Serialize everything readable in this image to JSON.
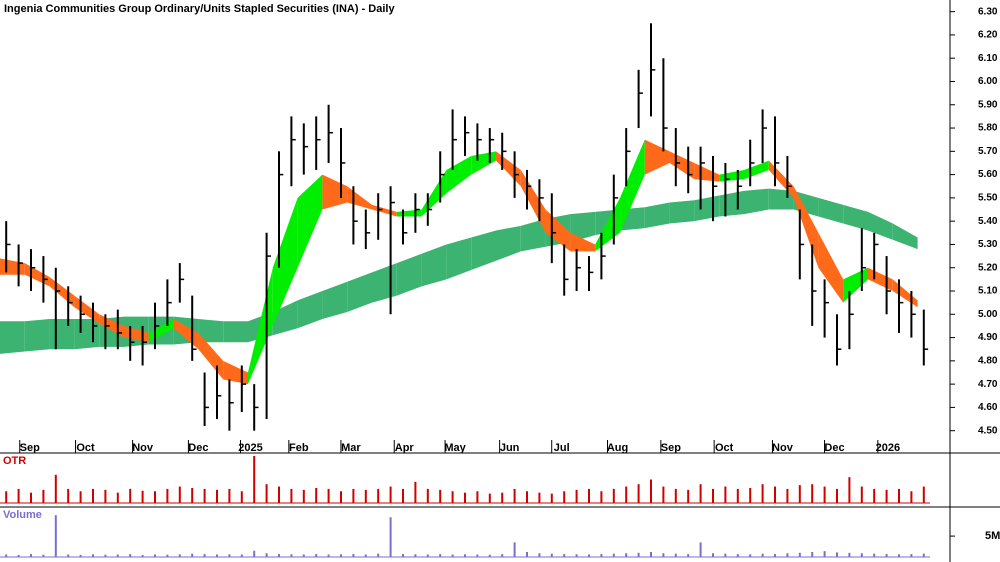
{
  "chart_data": {
    "type": "ohlc",
    "title": "Ingenia Communities Group Ordinary/Units Stapled Securities (INA) - Daily",
    "xlim": [
      0,
      75
    ],
    "xticks": [
      {
        "value": 2.4,
        "label": "Sep"
      },
      {
        "value": 6.9,
        "label": "Oct"
      },
      {
        "value": 11.5,
        "label": "Nov"
      },
      {
        "value": 16.0,
        "label": "Dec"
      },
      {
        "value": 20.2,
        "label": "2025"
      },
      {
        "value": 24.1,
        "label": "Feb"
      },
      {
        "value": 28.3,
        "label": "Mar"
      },
      {
        "value": 32.6,
        "label": "Apr"
      },
      {
        "value": 36.7,
        "label": "May"
      },
      {
        "value": 41.1,
        "label": "Jun"
      },
      {
        "value": 45.3,
        "label": "Jul"
      },
      {
        "value": 49.8,
        "label": "Aug"
      },
      {
        "value": 54.1,
        "label": "Sep"
      },
      {
        "value": 58.4,
        "label": "Oct"
      },
      {
        "value": 63.1,
        "label": "Nov"
      },
      {
        "value": 67.3,
        "label": "Dec"
      },
      {
        "value": 71.6,
        "label": "2026"
      }
    ],
    "ylim": [
      4.46,
      6.35
    ],
    "yticks": [
      {
        "value": 4.5,
        "label": "4.50"
      },
      {
        "value": 4.6,
        "label": "4.60"
      },
      {
        "value": 4.7,
        "label": "4.70"
      },
      {
        "value": 4.8,
        "label": "4.80"
      },
      {
        "value": 4.9,
        "label": "4.90"
      },
      {
        "value": 5.0,
        "label": "5.00"
      },
      {
        "value": 5.1,
        "label": "5.10"
      },
      {
        "value": 5.2,
        "label": "5.20"
      },
      {
        "value": 5.3,
        "label": "5.30"
      },
      {
        "value": 5.4,
        "label": "5.40"
      },
      {
        "value": 5.5,
        "label": "5.50"
      },
      {
        "value": 5.6,
        "label": "5.60"
      },
      {
        "value": 5.7,
        "label": "5.70"
      },
      {
        "value": 5.8,
        "label": "5.80"
      },
      {
        "value": 5.9,
        "label": "5.90"
      },
      {
        "value": 6.0,
        "label": "6.00"
      },
      {
        "value": 6.1,
        "label": "6.10"
      },
      {
        "value": 6.2,
        "label": "6.20"
      },
      {
        "value": 6.3,
        "label": "6.30"
      }
    ],
    "bar_color": "#000000",
    "high": [
      5.4,
      5.3,
      5.28,
      5.25,
      5.2,
      5.12,
      5.08,
      5.05,
      5.0,
      5.02,
      4.95,
      4.95,
      5.05,
      5.15,
      5.22,
      5.08,
      4.75,
      4.78,
      4.72,
      4.78,
      4.7,
      5.35,
      5.7,
      5.85,
      5.82,
      5.85,
      5.9,
      5.8,
      5.55,
      5.45,
      5.52,
      5.55,
      5.45,
      5.52,
      5.52,
      5.7,
      5.88,
      5.85,
      5.82,
      5.8,
      5.78,
      5.7,
      5.62,
      5.58,
      5.52,
      5.3,
      5.28,
      5.25,
      5.35,
      5.6,
      5.8,
      6.05,
      6.25,
      6.1,
      5.8,
      5.72,
      5.72,
      5.68,
      5.65,
      5.62,
      5.75,
      5.88,
      5.85,
      5.68,
      5.45,
      5.3,
      5.15,
      5.0,
      5.1,
      5.37,
      5.35,
      5.25,
      5.15,
      5.1,
      5.02
    ],
    "low": [
      5.18,
      5.12,
      5.1,
      5.05,
      4.85,
      4.95,
      4.92,
      4.88,
      4.85,
      4.85,
      4.8,
      4.78,
      4.85,
      4.95,
      5.05,
      4.8,
      4.52,
      4.55,
      4.5,
      4.58,
      4.5,
      4.55,
      5.2,
      5.55,
      5.6,
      5.62,
      5.65,
      5.5,
      5.3,
      5.28,
      5.32,
      5.0,
      5.3,
      5.35,
      5.38,
      5.48,
      5.62,
      5.68,
      5.66,
      5.65,
      5.62,
      5.5,
      5.45,
      5.4,
      5.22,
      5.08,
      5.1,
      5.1,
      5.15,
      5.3,
      5.55,
      5.8,
      5.85,
      5.7,
      5.55,
      5.52,
      5.45,
      5.4,
      5.42,
      5.45,
      5.55,
      5.65,
      5.55,
      5.5,
      5.15,
      4.95,
      4.9,
      4.78,
      4.85,
      5.1,
      5.15,
      5.0,
      4.92,
      4.9,
      4.78
    ],
    "close": [
      5.3,
      5.22,
      5.2,
      5.15,
      5.1,
      5.05,
      5.0,
      4.95,
      4.95,
      4.92,
      4.88,
      4.88,
      4.95,
      5.05,
      5.15,
      4.85,
      4.6,
      4.65,
      4.62,
      4.7,
      4.6,
      5.25,
      5.6,
      5.75,
      5.72,
      5.75,
      5.78,
      5.65,
      5.4,
      5.35,
      5.45,
      5.48,
      5.35,
      5.45,
      5.45,
      5.6,
      5.75,
      5.78,
      5.75,
      5.75,
      5.7,
      5.6,
      5.55,
      5.5,
      5.35,
      5.15,
      5.2,
      5.18,
      5.25,
      5.5,
      5.7,
      5.95,
      6.05,
      5.8,
      5.65,
      5.6,
      5.65,
      5.55,
      5.58,
      5.55,
      5.65,
      5.8,
      5.65,
      5.55,
      5.3,
      5.1,
      5.05,
      4.85,
      5.0,
      5.2,
      5.3,
      5.1,
      5.05,
      5.0,
      4.85
    ],
    "band_x": [
      0,
      2,
      4,
      6,
      8,
      10,
      12,
      14,
      16,
      18,
      20,
      22,
      24,
      26,
      28,
      30,
      32,
      34,
      36,
      38,
      40,
      42,
      44,
      46,
      48,
      50,
      52,
      54,
      56,
      58,
      60,
      62,
      64,
      66,
      68,
      70,
      72,
      74
    ],
    "short_band": {
      "rising_color": "#00ee00",
      "falling_color": "#ff6a1a",
      "upper": [
        5.24,
        5.22,
        5.16,
        5.08,
        5.0,
        4.95,
        4.92,
        4.98,
        4.92,
        4.8,
        4.75,
        5.2,
        5.5,
        5.6,
        5.55,
        5.47,
        5.44,
        5.45,
        5.62,
        5.68,
        5.7,
        5.62,
        5.45,
        5.35,
        5.3,
        5.5,
        5.75,
        5.7,
        5.65,
        5.6,
        5.62,
        5.66,
        5.55,
        5.35,
        5.15,
        5.2,
        5.15,
        5.06
      ],
      "lower": [
        5.17,
        5.17,
        5.12,
        5.03,
        4.96,
        4.9,
        4.88,
        4.94,
        4.85,
        4.72,
        4.7,
        4.95,
        5.2,
        5.45,
        5.48,
        5.45,
        5.42,
        5.42,
        5.52,
        5.6,
        5.66,
        5.55,
        5.35,
        5.27,
        5.27,
        5.35,
        5.6,
        5.65,
        5.58,
        5.57,
        5.58,
        5.62,
        5.5,
        5.2,
        5.05,
        5.15,
        5.1,
        5.03
      ]
    },
    "long_band": {
      "color": "#3cb371",
      "upper": [
        4.97,
        4.97,
        4.98,
        4.98,
        4.98,
        4.99,
        4.99,
        4.99,
        4.98,
        4.97,
        4.97,
        5.01,
        5.06,
        5.1,
        5.14,
        5.18,
        5.22,
        5.26,
        5.3,
        5.33,
        5.36,
        5.38,
        5.41,
        5.43,
        5.44,
        5.45,
        5.46,
        5.48,
        5.49,
        5.51,
        5.53,
        5.54,
        5.53,
        5.5,
        5.47,
        5.44,
        5.39,
        5.33
      ],
      "lower": [
        4.83,
        4.84,
        4.85,
        4.85,
        4.86,
        4.86,
        4.87,
        4.87,
        4.88,
        4.88,
        4.88,
        4.91,
        4.94,
        4.98,
        5.01,
        5.05,
        5.08,
        5.12,
        5.15,
        5.19,
        5.23,
        5.27,
        5.29,
        5.31,
        5.34,
        5.36,
        5.37,
        5.39,
        5.4,
        5.42,
        5.43,
        5.45,
        5.45,
        5.42,
        5.39,
        5.36,
        5.32,
        5.28
      ]
    },
    "otr": {
      "label": "OTR",
      "color": "#d00000",
      "ylim": [
        0,
        1
      ],
      "values": [
        0.25,
        0.3,
        0.22,
        0.28,
        0.6,
        0.3,
        0.25,
        0.3,
        0.28,
        0.22,
        0.3,
        0.26,
        0.25,
        0.3,
        0.35,
        0.32,
        0.3,
        0.28,
        0.3,
        0.25,
        1.0,
        0.4,
        0.35,
        0.3,
        0.28,
        0.32,
        0.3,
        0.25,
        0.3,
        0.28,
        0.3,
        0.35,
        0.3,
        0.45,
        0.3,
        0.28,
        0.25,
        0.22,
        0.25,
        0.2,
        0.22,
        0.3,
        0.25,
        0.22,
        0.2,
        0.25,
        0.28,
        0.3,
        0.25,
        0.3,
        0.35,
        0.4,
        0.5,
        0.35,
        0.3,
        0.28,
        0.4,
        0.3,
        0.35,
        0.3,
        0.32,
        0.4,
        0.35,
        0.3,
        0.38,
        0.4,
        0.35,
        0.3,
        0.55,
        0.35,
        0.3,
        0.28,
        0.3,
        0.25,
        0.35
      ]
    },
    "volume": {
      "label": "Volume",
      "color": "#7a6fd0",
      "ylim": [
        0,
        11000000
      ],
      "yticks": [
        {
          "value": 5000000,
          "label": "5M"
        }
      ],
      "values": [
        600000,
        500000,
        700000,
        550000,
        10000000,
        600000,
        500000,
        650000,
        550000,
        600000,
        700000,
        500000,
        600000,
        550000,
        650000,
        800000,
        700000,
        600000,
        650000,
        600000,
        1500000,
        900000,
        700000,
        650000,
        600000,
        700000,
        600000,
        650000,
        700000,
        600000,
        800000,
        9500000,
        700000,
        650000,
        600000,
        700000,
        600000,
        650000,
        600000,
        550000,
        700000,
        3500000,
        1200000,
        900000,
        800000,
        700000,
        650000,
        600000,
        700000,
        800000,
        900000,
        1000000,
        1200000,
        900000,
        800000,
        700000,
        3500000,
        900000,
        800000,
        700000,
        650000,
        800000,
        700000,
        900000,
        1000000,
        1200000,
        1400000,
        1100000,
        1000000,
        900000,
        800000,
        700000,
        650000,
        700000,
        800000
      ]
    }
  }
}
